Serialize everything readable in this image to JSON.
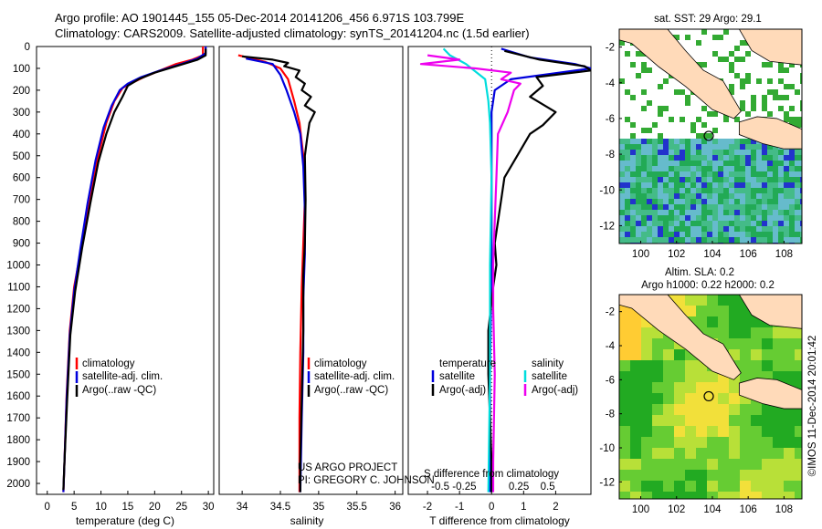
{
  "header": {
    "line1": "Argo profile: AO 1901445_155 05-Dec-2014 20141206_456 6.971S 103.799E",
    "line2": "Climatology: CARS2009. Satellite-adjusted climatology: synTS_20141204.nc (1.5d earlier)"
  },
  "colors": {
    "climatology": "#ff0000",
    "satellite": "#0000dd",
    "argo": "#000000",
    "salinity_sat": "#00dddd",
    "salinity_argo": "#ee00ee",
    "land": "#ffdab9",
    "ocean_high": "#00aa00",
    "ocean_low": "#66cccc"
  },
  "chart_data": [
    {
      "type": "line",
      "id": "temperature",
      "xlabel": "temperature (deg C)",
      "ylabel": "",
      "xlim": [
        -2,
        31
      ],
      "ylim": [
        2050,
        0
      ],
      "xticks": [
        0,
        5,
        10,
        15,
        20,
        25,
        30
      ],
      "yticks": [
        0,
        100,
        200,
        300,
        400,
        500,
        600,
        700,
        800,
        900,
        1000,
        1100,
        1200,
        1300,
        1400,
        1500,
        1600,
        1700,
        1800,
        1900,
        2000
      ],
      "legend": [
        "climatology",
        "satellite-adj. clim.",
        "Argo(..raw -QC)"
      ],
      "series": [
        {
          "name": "climatology",
          "color": "#ff0000",
          "points": [
            [
              29,
              0
            ],
            [
              29,
              40
            ],
            [
              27,
              60
            ],
            [
              24,
              80
            ],
            [
              21,
              110
            ],
            [
              18,
              140
            ],
            [
              15.5,
              170
            ],
            [
              14,
              190
            ],
            [
              12.5,
              250
            ],
            [
              11,
              350
            ],
            [
              9.5,
              500
            ],
            [
              8,
              700
            ],
            [
              6.5,
              900
            ],
            [
              5,
              1100
            ],
            [
              4.2,
              1300
            ],
            [
              3.6,
              1600
            ],
            [
              3.2,
              1900
            ],
            [
              3.0,
              2040
            ]
          ]
        },
        {
          "name": "satellite-adj. clim.",
          "color": "#0000dd",
          "points": [
            [
              29.5,
              0
            ],
            [
              29.5,
              30
            ],
            [
              28,
              55
            ],
            [
              25,
              80
            ],
            [
              21,
              110
            ],
            [
              17.5,
              140
            ],
            [
              15,
              170
            ],
            [
              13.5,
              200
            ],
            [
              12,
              270
            ],
            [
              10.5,
              370
            ],
            [
              9,
              520
            ],
            [
              7.5,
              720
            ],
            [
              6.2,
              920
            ],
            [
              5,
              1120
            ],
            [
              4.2,
              1320
            ],
            [
              3.6,
              1620
            ],
            [
              3.2,
              1900
            ],
            [
              3.0,
              2040
            ]
          ]
        },
        {
          "name": "Argo(..raw -QC)",
          "color": "#000000",
          "points": [
            [
              29.5,
              10
            ],
            [
              29.5,
              40
            ],
            [
              28,
              60
            ],
            [
              24,
              90
            ],
            [
              20,
              120
            ],
            [
              17,
              150
            ],
            [
              15,
              180
            ],
            [
              14,
              230
            ],
            [
              12.5,
              300
            ],
            [
              11,
              400
            ],
            [
              9.5,
              530
            ],
            [
              8,
              720
            ],
            [
              6.5,
              920
            ],
            [
              5.2,
              1120
            ],
            [
              4.3,
              1320
            ],
            [
              3.7,
              1620
            ],
            [
              3.2,
              1900
            ],
            [
              3.0,
              2030
            ]
          ]
        }
      ]
    },
    {
      "type": "line",
      "id": "salinity",
      "xlabel": "salinity",
      "xlim": [
        33.7,
        36.1
      ],
      "ylim": [
        2050,
        0
      ],
      "xticks": [
        34,
        34.5,
        35,
        35.5,
        36
      ],
      "legend": [
        "climatology",
        "satellite-adj. clim.",
        "Argo(..raw -QC)"
      ],
      "annotation": [
        "US ARGO PROJECT",
        "PI: GREGORY C. JOHNSON"
      ],
      "series": [
        {
          "name": "climatology",
          "color": "#ff0000",
          "points": [
            [
              33.95,
              40
            ],
            [
              34.3,
              70
            ],
            [
              34.5,
              100
            ],
            [
              34.6,
              150
            ],
            [
              34.68,
              250
            ],
            [
              34.75,
              350
            ],
            [
              34.8,
              500
            ],
            [
              34.82,
              700
            ],
            [
              34.8,
              900
            ],
            [
              34.78,
              1100
            ],
            [
              34.76,
              1400
            ],
            [
              34.75,
              1700
            ],
            [
              34.75,
              2040
            ]
          ]
        },
        {
          "name": "satellite-adj. clim.",
          "color": "#0000dd",
          "points": [
            [
              34.05,
              55
            ],
            [
              34.4,
              80
            ],
            [
              34.5,
              130
            ],
            [
              34.58,
              200
            ],
            [
              34.68,
              300
            ],
            [
              34.76,
              400
            ],
            [
              34.8,
              550
            ],
            [
              34.82,
              750
            ],
            [
              34.82,
              950
            ],
            [
              34.8,
              1150
            ],
            [
              34.8,
              1400
            ],
            [
              34.78,
              1700
            ],
            [
              34.76,
              2040
            ]
          ]
        },
        {
          "name": "Argo(..raw -QC)",
          "color": "#000000",
          "points": [
            [
              34.0,
              45
            ],
            [
              34.4,
              60
            ],
            [
              34.6,
              75
            ],
            [
              34.55,
              90
            ],
            [
              34.75,
              110
            ],
            [
              34.7,
              140
            ],
            [
              34.82,
              170
            ],
            [
              34.78,
              200
            ],
            [
              34.9,
              230
            ],
            [
              34.82,
              270
            ],
            [
              34.95,
              300
            ],
            [
              34.88,
              350
            ],
            [
              34.85,
              420
            ],
            [
              34.82,
              500
            ],
            [
              34.83,
              700
            ],
            [
              34.82,
              900
            ],
            [
              34.8,
              1050
            ],
            [
              34.8,
              1300
            ],
            [
              34.78,
              1600
            ],
            [
              34.76,
              1900
            ],
            [
              34.76,
              2040
            ]
          ]
        }
      ]
    },
    {
      "type": "line",
      "id": "difference",
      "xlabel": "T difference from climatology",
      "xlabel_top": "S difference from climatology",
      "xlim": [
        -2.6,
        3.1
      ],
      "ylim": [
        2050,
        0
      ],
      "xticks": [
        -2,
        -1,
        0,
        1,
        2
      ],
      "sticks": [
        "-0.5",
        "-0.25",
        "0",
        "0.25",
        "0.5"
      ],
      "legend_temperature": {
        "title": "temperature",
        "items": [
          "satellite",
          "Argo(-adj)"
        ]
      },
      "legend_salinity": {
        "title": "salinity",
        "items": [
          "satellite",
          "Argo(-adj)"
        ]
      },
      "series": [
        {
          "name": "temperature satellite",
          "color": "#0000dd",
          "points": [
            [
              0.3,
              10
            ],
            [
              1.2,
              50
            ],
            [
              2.6,
              80
            ],
            [
              3.1,
              100
            ],
            [
              0.6,
              150
            ],
            [
              0.1,
              200
            ],
            [
              0,
              300
            ],
            [
              0,
              1000
            ],
            [
              -0.05,
              1500
            ],
            [
              -0.05,
              2040
            ]
          ]
        },
        {
          "name": "temperature Argo",
          "color": "#000000",
          "points": [
            [
              0.4,
              20
            ],
            [
              1.5,
              60
            ],
            [
              2.9,
              90
            ],
            [
              3.1,
              110
            ],
            [
              1.4,
              140
            ],
            [
              1.6,
              180
            ],
            [
              1.2,
              230
            ],
            [
              2.0,
              300
            ],
            [
              1.6,
              360
            ],
            [
              1.2,
              400
            ],
            [
              0.8,
              500
            ],
            [
              0.4,
              600
            ],
            [
              0.3,
              700
            ],
            [
              0.1,
              900
            ],
            [
              0.15,
              1000
            ],
            [
              0.05,
              1100
            ],
            [
              -0.1,
              1300
            ],
            [
              -0.1,
              1500
            ],
            [
              -0.05,
              1700
            ],
            [
              0,
              1900
            ],
            [
              0,
              2040
            ]
          ]
        },
        {
          "name": "salinity satellite",
          "color": "#00dddd",
          "points": [
            [
              -1.5,
              10
            ],
            [
              -1.3,
              40
            ],
            [
              -0.8,
              80
            ],
            [
              -0.2,
              150
            ],
            [
              -0.1,
              250
            ],
            [
              -0.05,
              350
            ],
            [
              0,
              600
            ],
            [
              -0.05,
              1000
            ],
            [
              -0.05,
              1500
            ],
            [
              -0.1,
              2040
            ]
          ]
        },
        {
          "name": "salinity Argo",
          "color": "#ee00ee",
          "points": [
            [
              -2.0,
              40
            ],
            [
              -1.0,
              60
            ],
            [
              -2.2,
              80
            ],
            [
              -0.5,
              100
            ],
            [
              0.6,
              120
            ],
            [
              0.3,
              150
            ],
            [
              0.9,
              170
            ],
            [
              0.7,
              200
            ],
            [
              0.6,
              250
            ],
            [
              0.5,
              300
            ],
            [
              0.2,
              400
            ],
            [
              0.15,
              600
            ],
            [
              0.1,
              800
            ],
            [
              0.05,
              1000
            ],
            [
              0.05,
              1200
            ],
            [
              0.1,
              1500
            ],
            [
              0.05,
              1900
            ],
            [
              0.05,
              2040
            ]
          ]
        }
      ]
    },
    {
      "type": "heatmap",
      "id": "sst_map",
      "title": "sat. SST: 29  Argo: 29.1",
      "xlim": [
        98.8,
        109.0
      ],
      "ylim": [
        -13,
        -1
      ],
      "xticks": [
        100,
        102,
        104,
        106,
        108
      ],
      "yticks": [
        -2,
        -4,
        -6,
        -8,
        -10,
        -12
      ],
      "argo_position": [
        103.799,
        -6.971
      ]
    },
    {
      "type": "heatmap",
      "id": "sla_map",
      "title_lines": [
        "Altim. SLA: 0.2",
        "Argo h1000: 0.22 h2000: 0.2"
      ],
      "xlim": [
        98.8,
        109.0
      ],
      "ylim": [
        -13,
        -1
      ],
      "xticks": [
        100,
        102,
        104,
        106,
        108
      ],
      "yticks": [
        -2,
        -4,
        -6,
        -8,
        -10,
        -12
      ],
      "argo_position": [
        103.799,
        -6.971
      ]
    }
  ],
  "footer": {
    "credit": "©IMOS 11-Dec-2014 20:01:42"
  }
}
